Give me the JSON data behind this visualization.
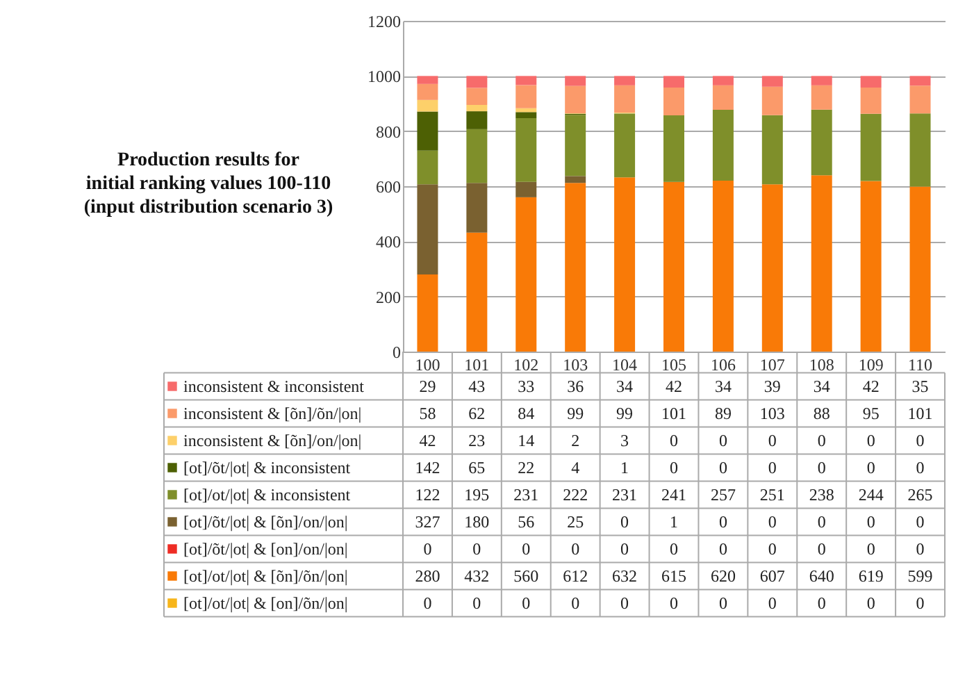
{
  "chart_data": {
    "type": "bar",
    "stacked": true,
    "title": "Production results for\ninitial ranking values 100-110\n(input distribution scenario 3)",
    "categories": [
      "100",
      "101",
      "102",
      "103",
      "104",
      "105",
      "106",
      "107",
      "108",
      "109",
      "110"
    ],
    "series": [
      {
        "name": "[ot]/ot/|ot|  & [on]/õn/|on|",
        "color": "#f7b51a",
        "values": [
          0,
          0,
          0,
          0,
          0,
          0,
          0,
          0,
          0,
          0,
          0
        ],
        "value_labels": [
          "0",
          "0",
          "0",
          "0",
          "0",
          "0",
          "0",
          "0",
          "0",
          "0",
          "0"
        ]
      },
      {
        "name": "[ot]/ot/|ot|  & [õn]/õn/|on|",
        "color": "#f97a07",
        "values": [
          280,
          432,
          560,
          612,
          632,
          615,
          620,
          607,
          640,
          619,
          599
        ],
        "value_labels": [
          "280",
          "432",
          "560",
          "612",
          "632",
          "615",
          "620",
          "607",
          "640",
          "619",
          "599"
        ]
      },
      {
        "name": "[ot]/õt/|ot|  & [on]/on/|on|",
        "color": "#ee2c24",
        "values": [
          0,
          0,
          0,
          0,
          0,
          0,
          0,
          0,
          0,
          0,
          0
        ],
        "value_labels": [
          "0",
          "0",
          "0",
          "0",
          "0",
          "0",
          "0",
          "0",
          "0",
          "0",
          "0"
        ]
      },
      {
        "name": "[ot]/õt/|ot|  & [õn]/on/|on|",
        "color": "#7a6130",
        "values": [
          327,
          180,
          56,
          25,
          0,
          1,
          0,
          0,
          0,
          0,
          0
        ],
        "value_labels": [
          "327",
          "180",
          "56",
          "25",
          "0",
          "1",
          "0",
          "0",
          "0",
          "0",
          "0"
        ]
      },
      {
        "name": "[ot]/ot/|ot|  & inconsistent",
        "color": "#7f8f2a",
        "values": [
          122,
          195,
          231,
          222,
          231,
          241,
          257,
          251,
          238,
          244,
          265
        ],
        "value_labels": [
          "122",
          "195",
          "231",
          "222",
          "231",
          "241",
          "257",
          "251",
          "238",
          "244",
          "265"
        ]
      },
      {
        "name": "[ot]/õt/|ot|  & inconsistent",
        "color": "#4d6004",
        "values": [
          142,
          65,
          22,
          4,
          1,
          0,
          0,
          0,
          0,
          0,
          0
        ],
        "value_labels": [
          "142",
          "65",
          "22",
          "4",
          "1",
          "0",
          "0",
          "0",
          "0",
          "0",
          "0"
        ]
      },
      {
        "name": "inconsistent & [õn]/on/|on|",
        "color": "#fdd06a",
        "values": [
          42,
          23,
          14,
          2,
          3,
          0,
          0,
          0,
          0,
          0,
          0
        ],
        "value_labels": [
          "42",
          "23",
          "14",
          "2",
          "3",
          "0",
          "0",
          "0",
          "0",
          "0",
          "0"
        ]
      },
      {
        "name": "inconsistent & [õn]/õn/|on|",
        "color": "#fb9a6a",
        "values": [
          58,
          62,
          84,
          99,
          99,
          101,
          89,
          103,
          88,
          95,
          101
        ],
        "value_labels": [
          "58",
          "62",
          "84",
          "99",
          "99",
          "101",
          "89",
          "103",
          "88",
          "95",
          "101"
        ]
      },
      {
        "name": "inconsistent & inconsistent",
        "color": "#f76b6b",
        "values": [
          29,
          43,
          33,
          36,
          34,
          42,
          34,
          39,
          34,
          42,
          35
        ],
        "value_labels": [
          "29",
          "43",
          "33",
          "36",
          "34",
          "42",
          "34",
          "39",
          "34",
          "42",
          "35"
        ]
      }
    ],
    "ylim": [
      0,
      1200
    ],
    "yticks": [
      0,
      200,
      400,
      600,
      800,
      1000,
      1200
    ],
    "grid": "y",
    "legend": "bottom"
  }
}
